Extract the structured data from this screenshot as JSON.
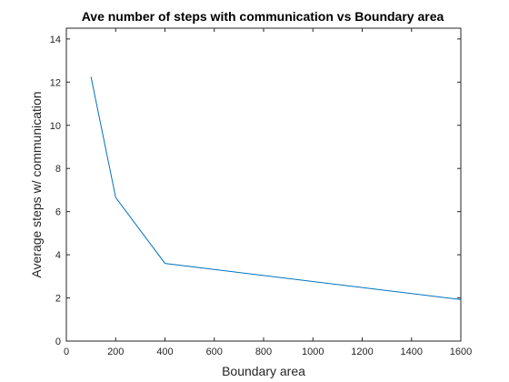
{
  "chart_data": {
    "type": "line",
    "title": "Ave number of steps with communication vs Boundary area",
    "xlabel": "Boundary area",
    "ylabel": "Average steps w/ communication",
    "xlim": [
      0,
      1600
    ],
    "ylim": [
      0,
      14.5
    ],
    "xticks": [
      0,
      200,
      400,
      600,
      800,
      1000,
      1200,
      1400,
      1600
    ],
    "yticks": [
      0,
      2,
      4,
      6,
      8,
      10,
      12,
      14
    ],
    "grid": false,
    "series": [
      {
        "x": [
          100,
          200,
          400,
          1600
        ],
        "y": [
          12.25,
          6.65,
          3.6,
          1.92
        ],
        "color": "#0072BD"
      }
    ]
  }
}
